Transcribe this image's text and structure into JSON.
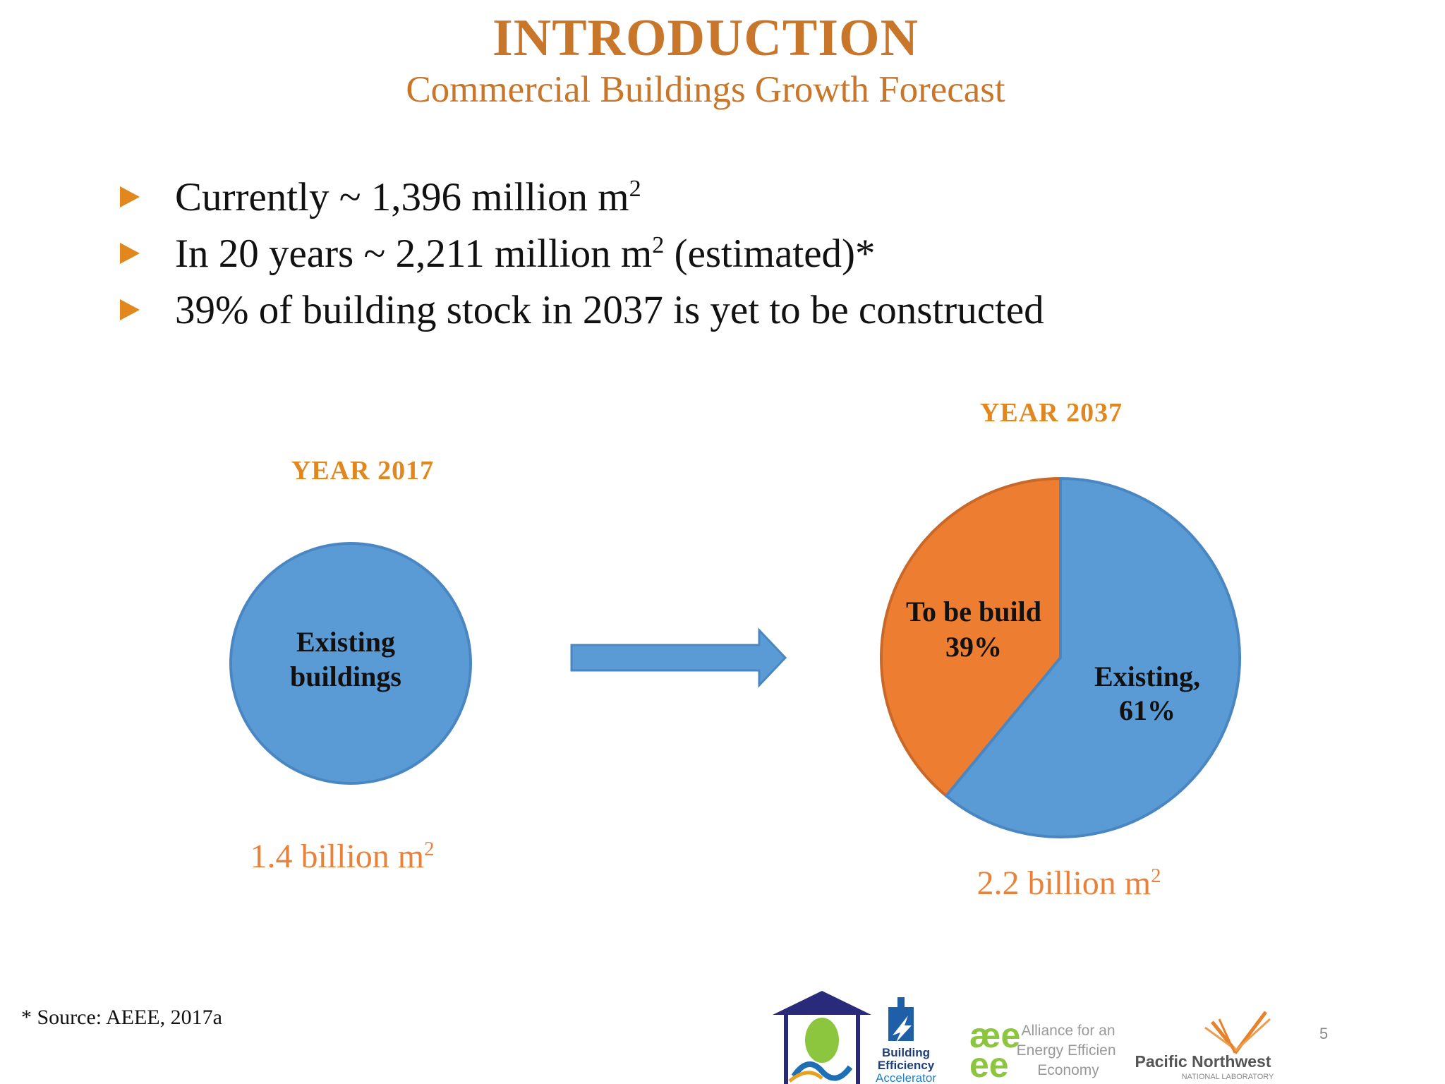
{
  "title": "INTRODUCTION",
  "subtitle": "Commercial Buildings Growth Forecast",
  "bullets": [
    {
      "text": "Currently ~ 1,396 million m",
      "sup": "2",
      "after": ""
    },
    {
      "text": "In 20 years ~ 2,211 million m",
      "sup": "2",
      "after": " (estimated)*"
    },
    {
      "text": "39% of building stock in 2037 is yet to be constructed",
      "sup": "",
      "after": ""
    }
  ],
  "chart_data": [
    {
      "type": "pie",
      "title": "YEAR 2017",
      "slices": [
        {
          "label_line1": "Existing",
          "label_line2": "buildings",
          "value": 100
        }
      ],
      "total_label": "1.4 billion m",
      "total_sup": "2"
    },
    {
      "type": "pie",
      "title": "YEAR 2037",
      "slices": [
        {
          "label_line1": "To be build",
          "label_line2": "39%",
          "value": 39
        },
        {
          "label_line1": "Existing,",
          "label_line2": "61%",
          "value": 61
        }
      ],
      "total_label": "2.2 billion m",
      "total_sup": "2"
    }
  ],
  "colors": {
    "accent": "#C8762A",
    "bullet": "#E2861E",
    "existing": "#5B9BD5",
    "existing_stroke": "#4A87C2",
    "to_build": "#ED7D31",
    "to_build_stroke": "#C8692A",
    "arrow": "#5B9BD5"
  },
  "footnote": "* Source: AEEE, 2017a",
  "page_number": "5",
  "logos": {
    "bea_lines": [
      "Building",
      "Efficiency",
      "Accelerator"
    ],
    "aeee_mark": [
      "æe",
      "ee"
    ],
    "aeee_lines": [
      "Alliance for an",
      "Energy Efficient",
      "Economy"
    ],
    "pnnl_name": "Pacific Northwest",
    "pnnl_sub": "NATIONAL LABORATORY"
  }
}
